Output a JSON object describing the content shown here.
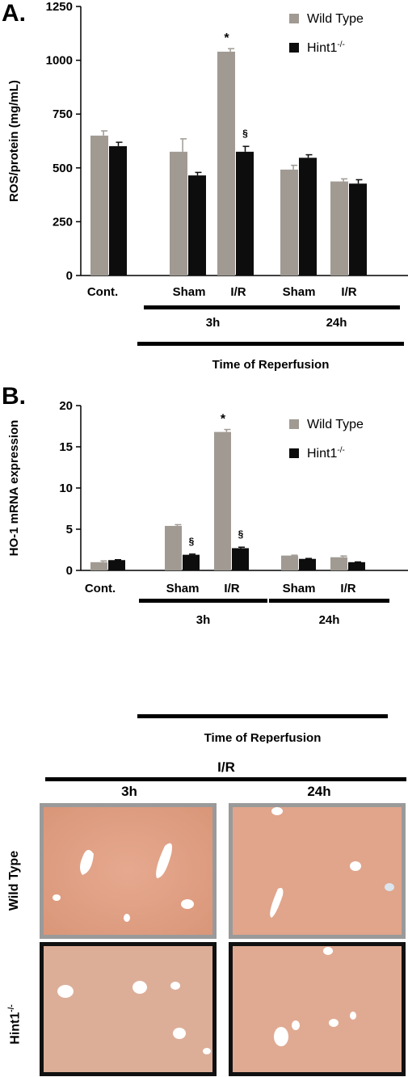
{
  "panel_a": {
    "letter": "A."
  },
  "panel_b": {
    "letter": "B."
  },
  "chart_data": [
    {
      "type": "bar",
      "title": "",
      "ylabel": "ROS/protein (mg/mL)",
      "xlabel": "Time of Reperfusion",
      "ylim": [
        0,
        1250
      ],
      "yticks": [
        0,
        250,
        500,
        750,
        1000,
        1250
      ],
      "categories": [
        "Cont.",
        "3h Sham",
        "3h I/R",
        "24h Sham",
        "24h I/R"
      ],
      "category_labels": [
        "Cont.",
        "Sham",
        "I/R",
        "Sham",
        "I/R"
      ],
      "group_labels": [
        "3h",
        "24h"
      ],
      "legend_position": "top-right",
      "series": [
        {
          "name": "Wild Type",
          "color": "#a09a93",
          "values": [
            650,
            575,
            1040,
            492,
            437
          ],
          "errors": [
            22,
            60,
            14,
            20,
            12
          ]
        },
        {
          "name": "Hint1-/-",
          "color": "#0d0d0d",
          "values": [
            601,
            465,
            575,
            547,
            427
          ],
          "errors": [
            18,
            14,
            25,
            14,
            18
          ]
        }
      ],
      "annotations": [
        {
          "text": "*",
          "category": "3h I/R",
          "series": "Wild Type"
        },
        {
          "text": "§",
          "category": "3h I/R",
          "series": "Hint1-/-"
        }
      ]
    },
    {
      "type": "bar",
      "title": "",
      "ylabel": "HO-1 mRNA expression",
      "xlabel": "Time of Reperfusion",
      "ylim": [
        0,
        20
      ],
      "yticks": [
        0,
        5,
        10,
        15,
        20
      ],
      "categories": [
        "Cont.",
        "3h Sham",
        "3h I/R",
        "24h Sham",
        "24h I/R"
      ],
      "category_labels": [
        "Cont.",
        "Sham",
        "I/R",
        "Sham",
        "I/R"
      ],
      "group_labels": [
        "3h",
        "24h"
      ],
      "legend_position": "top-right",
      "series": [
        {
          "name": "Wild Type",
          "color": "#a09a93",
          "values": [
            1.0,
            5.4,
            16.8,
            1.8,
            1.6
          ],
          "errors": [
            0.15,
            0.15,
            0.3,
            0.05,
            0.15
          ]
        },
        {
          "name": "Hint1-/-",
          "color": "#0d0d0d",
          "values": [
            1.25,
            1.9,
            2.7,
            1.4,
            1.0
          ],
          "errors": [
            0.05,
            0.08,
            0.12,
            0.05,
            0.03
          ]
        }
      ],
      "annotations": [
        {
          "text": "*",
          "category": "3h I/R",
          "series": "Wild Type"
        },
        {
          "text": "§",
          "category": "3h Sham",
          "series": "Hint1-/-"
        },
        {
          "text": "§",
          "category": "3h I/R",
          "series": "Hint1-/-"
        }
      ]
    }
  ],
  "histology": {
    "header": "I/R",
    "columns": [
      "3h",
      "24h"
    ],
    "rows": [
      "Wild Type",
      "Hint1-/-"
    ],
    "row_border_colors": [
      "#9a9a9a",
      "#111111"
    ]
  }
}
